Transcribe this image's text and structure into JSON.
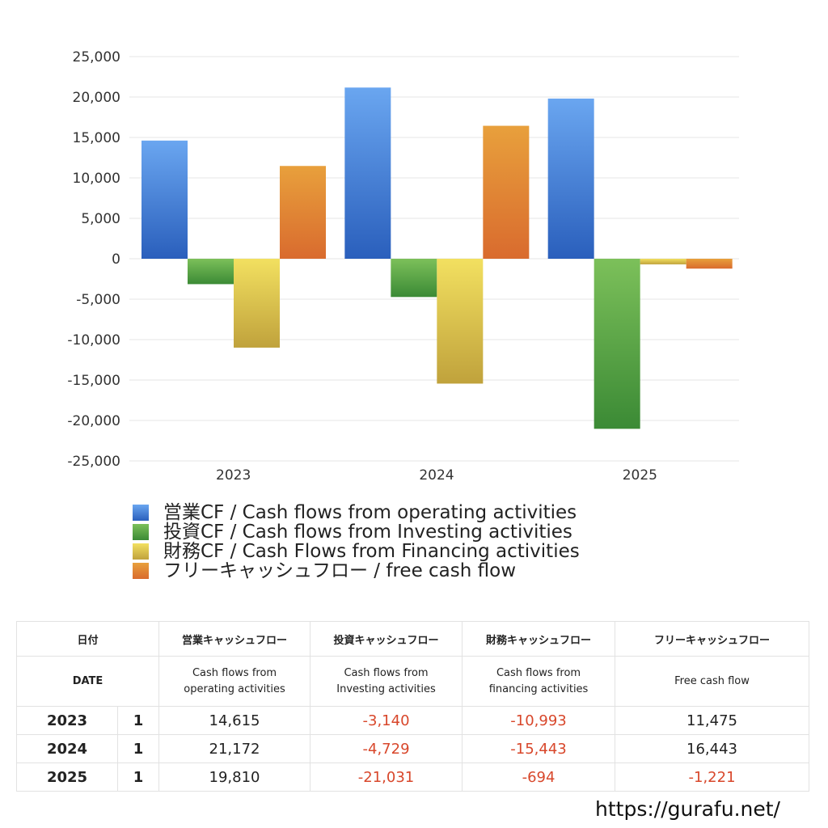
{
  "chart_data": {
    "type": "bar",
    "categories": [
      "2023",
      "2024",
      "2025"
    ],
    "series": [
      {
        "name": "営業CF / Cash flows from operating activities",
        "values": [
          14615,
          21172,
          19810
        ]
      },
      {
        "name": "投資CF / Cash flows from Investing activities",
        "values": [
          -3140,
          -4729,
          -21031
        ]
      },
      {
        "name": "財務CF / Cash Flows from Financing activities",
        "values": [
          -10993,
          -15443,
          -694
        ]
      },
      {
        "name": "フリーキャッシュフロー / free cash flow",
        "values": [
          11475,
          16443,
          -1221
        ]
      }
    ],
    "ylim": [
      -25000,
      25000
    ],
    "yticks": [
      25000,
      20000,
      15000,
      10000,
      5000,
      0,
      -5000,
      -10000,
      -15000,
      -20000,
      -25000
    ],
    "ytick_labels": [
      "25,000",
      "20,000",
      "15,000",
      "10,000",
      "5,000",
      "0",
      "-5,000",
      "-10,000",
      "-15,000",
      "-20,000",
      "-25,000"
    ],
    "grid": true,
    "legend_position": "bottom-left",
    "colors": {
      "operating": [
        "#6aa6f0",
        "#2a5fbc"
      ],
      "investing": [
        "#7cc05a",
        "#3b8a35"
      ],
      "financing": [
        "#f2e060",
        "#c0a23c"
      ],
      "free": [
        "#e8a03c",
        "#d96b2e"
      ]
    }
  },
  "table": {
    "header_jp": {
      "date": "日付",
      "operating": "営業キャッシュフロー",
      "investing": "投資キャッシュフロー",
      "financing": "財務キャッシュフロー",
      "free": "フリーキャッシュフロー"
    },
    "header_en": {
      "date": "DATE",
      "operating_1": "Cash flows from",
      "operating_2": "operating activities",
      "investing_1": "Cash flows from",
      "investing_2": "Investing activities",
      "financing_1": "Cash flows from",
      "financing_2": "financing activities",
      "free": "Free cash flow"
    },
    "rows": [
      {
        "year": "2023",
        "q": "1",
        "operating": "14,615",
        "investing": "-3,140",
        "financing": "-10,993",
        "free": "11,475"
      },
      {
        "year": "2024",
        "q": "1",
        "operating": "21,172",
        "investing": "-4,729",
        "financing": "-15,443",
        "free": "16,443"
      },
      {
        "year": "2025",
        "q": "1",
        "operating": "19,810",
        "investing": "-21,031",
        "financing": "-694",
        "free": "-1,221"
      }
    ]
  },
  "footer": {
    "url": "https://gurafu.net/"
  }
}
